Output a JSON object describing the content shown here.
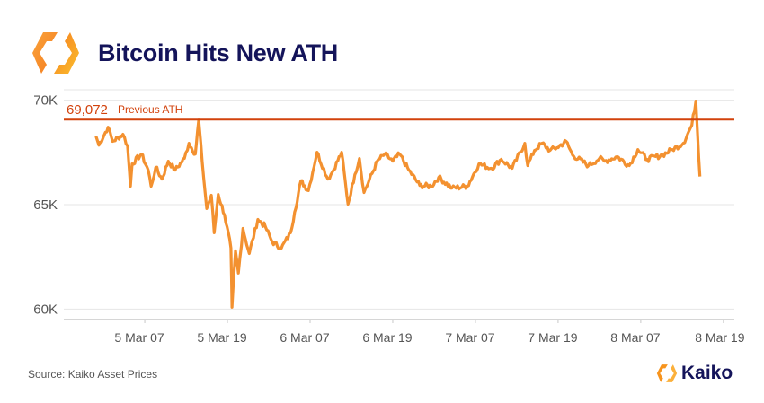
{
  "header": {
    "title": "Bitcoin Hits New ATH",
    "logo_icon": "kaiko-logo-icon"
  },
  "footer": {
    "source": "Source: Kaiko Asset Prices",
    "brand": "Kaiko"
  },
  "colors": {
    "line": "#f39130",
    "ath_line": "#d2420c",
    "title": "#14145a",
    "grid": "#e6e6e6",
    "axis_text": "#555555"
  },
  "chart_data": {
    "type": "line",
    "title": "Bitcoin Hits New ATH",
    "xlabel": "",
    "ylabel": "",
    "ylim": [
      59500,
      70500
    ],
    "xlim": [
      "4 Mar 19:15",
      "8 Mar 20:35"
    ],
    "grid": "horizontal",
    "yticks": [
      {
        "value": 60000,
        "label": "60K"
      },
      {
        "value": 65000,
        "label": "65K"
      },
      {
        "value": 70000,
        "label": "70K"
      }
    ],
    "xticks": [
      "5 Mar 07",
      "5 Mar 19",
      "6 Mar 07",
      "6 Mar 19",
      "7 Mar 07",
      "7 Mar 19",
      "8 Mar 07",
      "8 Mar 19"
    ],
    "reference_line": {
      "value": 69072,
      "value_label": "69,072",
      "label": "Previous ATH"
    },
    "series": [
      {
        "points": [
          [
            "4 Mar 23:55",
            68280
          ],
          [
            "5 Mar 00:20",
            67850
          ],
          [
            "5 Mar 01:40",
            68710
          ],
          [
            "5 Mar 02:20",
            68030
          ],
          [
            "5 Mar 03:50",
            68370
          ],
          [
            "5 Mar 04:30",
            67810
          ],
          [
            "5 Mar 04:55",
            65880
          ],
          [
            "5 Mar 05:10",
            66950
          ],
          [
            "5 Mar 06:30",
            67420
          ],
          [
            "5 Mar 07:30",
            66650
          ],
          [
            "5 Mar 07:55",
            65880
          ],
          [
            "5 Mar 08:35",
            66780
          ],
          [
            "5 Mar 09:30",
            66220
          ],
          [
            "5 Mar 10:25",
            67080
          ],
          [
            "5 Mar 11:25",
            66650
          ],
          [
            "5 Mar 12:45",
            67210
          ],
          [
            "5 Mar 13:25",
            67940
          ],
          [
            "5 Mar 14:20",
            67420
          ],
          [
            "5 Mar 14:50",
            69050
          ],
          [
            "5 Mar 15:20",
            67080
          ],
          [
            "5 Mar 16:00",
            64810
          ],
          [
            "5 Mar 16:40",
            65450
          ],
          [
            "5 Mar 17:05",
            63650
          ],
          [
            "5 Mar 17:40",
            65490
          ],
          [
            "5 Mar 18:35",
            64510
          ],
          [
            "5 Mar 19:30",
            62920
          ],
          [
            "5 Mar 19:40",
            60090
          ],
          [
            "5 Mar 20:10",
            62790
          ],
          [
            "5 Mar 20:35",
            61720
          ],
          [
            "5 Mar 21:15",
            63860
          ],
          [
            "5 Mar 22:10",
            62660
          ],
          [
            "5 Mar 23:25",
            64290
          ],
          [
            "6 Mar 00:30",
            63950
          ],
          [
            "6 Mar 01:30",
            63220
          ],
          [
            "6 Mar 02:50",
            62920
          ],
          [
            "6 Mar 04:10",
            63650
          ],
          [
            "6 Mar 04:45",
            64640
          ],
          [
            "6 Mar 05:40",
            66140
          ],
          [
            "6 Mar 06:45",
            65670
          ],
          [
            "6 Mar 08:00",
            67510
          ],
          [
            "6 Mar 09:35",
            66220
          ],
          [
            "6 Mar 10:15",
            66570
          ],
          [
            "6 Mar 11:35",
            67510
          ],
          [
            "6 Mar 12:30",
            65020
          ],
          [
            "6 Mar 13:30",
            66440
          ],
          [
            "6 Mar 14:10",
            67210
          ],
          [
            "6 Mar 14:50",
            65580
          ],
          [
            "6 Mar 16:45",
            67080
          ],
          [
            "6 Mar 17:50",
            67420
          ],
          [
            "6 Mar 19:00",
            67080
          ],
          [
            "6 Mar 20:00",
            67420
          ],
          [
            "6 Mar 21:20",
            66650
          ],
          [
            "6 Mar 22:55",
            65920
          ],
          [
            "7 Mar 00:35",
            65880
          ],
          [
            "7 Mar 01:40",
            66310
          ],
          [
            "7 Mar 03:35",
            65790
          ],
          [
            "7 Mar 05:50",
            65880
          ],
          [
            "7 Mar 07:30",
            66950
          ],
          [
            "7 Mar 09:20",
            66740
          ],
          [
            "7 Mar 10:45",
            67170
          ],
          [
            "7 Mar 12:20",
            66740
          ],
          [
            "7 Mar 14:10",
            67940
          ],
          [
            "7 Mar 14:35",
            66870
          ],
          [
            "7 Mar 15:35",
            67600
          ],
          [
            "7 Mar 16:40",
            67940
          ],
          [
            "7 Mar 17:50",
            67600
          ],
          [
            "7 Mar 18:50",
            67730
          ],
          [
            "7 Mar 20:10",
            68030
          ],
          [
            "7 Mar 21:05",
            67380
          ],
          [
            "7 Mar 23:25",
            66870
          ],
          [
            "8 Mar 01:00",
            67210
          ],
          [
            "8 Mar 01:45",
            67080
          ],
          [
            "8 Mar 03:35",
            67300
          ],
          [
            "8 Mar 05:20",
            66870
          ],
          [
            "8 Mar 06:35",
            67640
          ],
          [
            "8 Mar 07:55",
            67170
          ],
          [
            "8 Mar 10:10",
            67380
          ],
          [
            "8 Mar 11:35",
            67640
          ],
          [
            "8 Mar 13:10",
            67940
          ],
          [
            "8 Mar 14:25",
            68800
          ],
          [
            "8 Mar 15:00",
            69960
          ],
          [
            "8 Mar 15:15",
            68370
          ],
          [
            "8 Mar 15:35",
            66350
          ]
        ]
      }
    ]
  }
}
